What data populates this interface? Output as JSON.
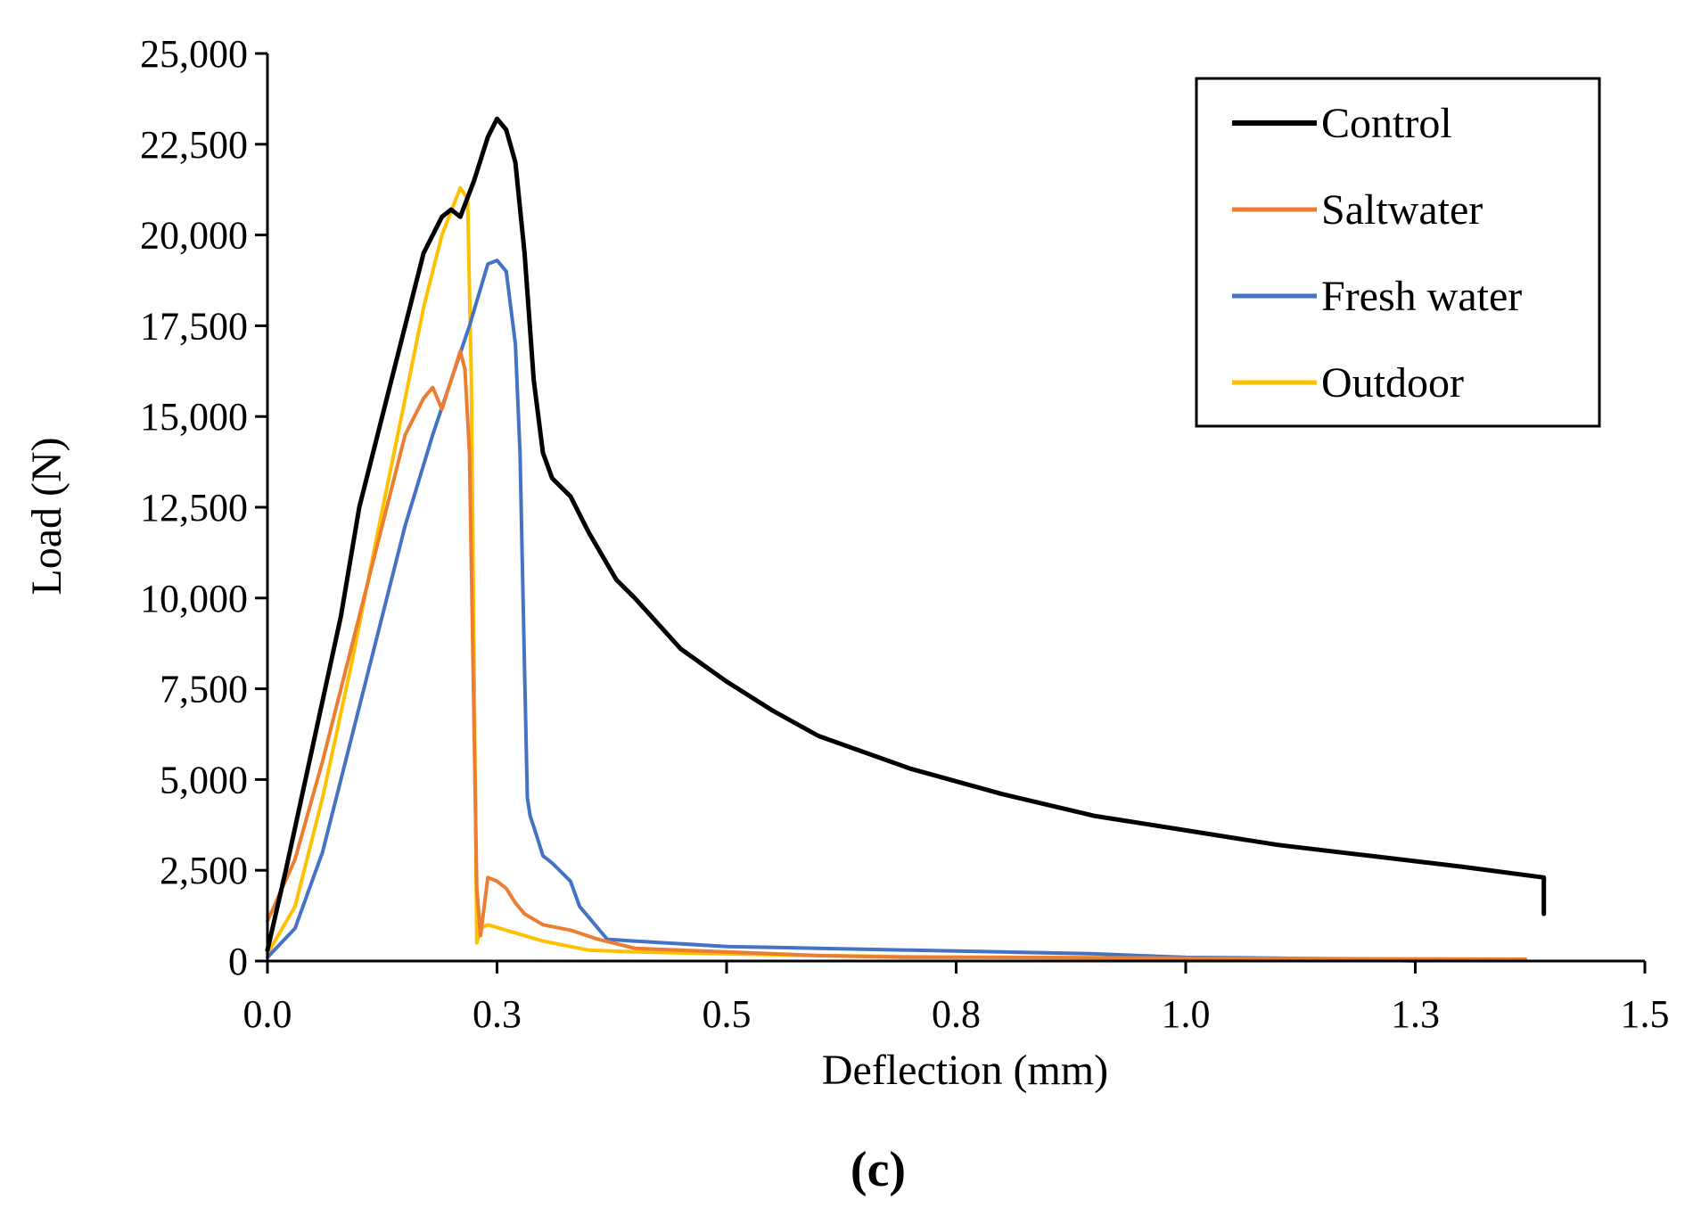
{
  "chart_data": {
    "type": "line",
    "title": "",
    "xlabel": "Deflection (mm)",
    "ylabel": "Load (N)",
    "panel_label": "(c)",
    "xlim": [
      0,
      1.5
    ],
    "ylim": [
      0,
      25000
    ],
    "x_ticks": [
      0,
      0.25,
      0.5,
      0.75,
      1.0,
      1.25,
      1.5
    ],
    "x_tick_labels": [
      "0.0",
      "0.3",
      "0.5",
      "0.8",
      "1.0",
      "1.3",
      "1.5"
    ],
    "y_ticks": [
      0,
      2500,
      5000,
      7500,
      10000,
      12500,
      15000,
      17500,
      20000,
      22500,
      25000
    ],
    "y_tick_labels": [
      "0",
      "2,500",
      "5,000",
      "7,500",
      "10,000",
      "12,500",
      "15,000",
      "17,500",
      "20,000",
      "22,500",
      "25,000"
    ],
    "grid": false,
    "legend_position": "top-right",
    "series": [
      {
        "name": "Control",
        "color": "#000000",
        "x": [
          0,
          0.02,
          0.05,
          0.08,
          0.1,
          0.13,
          0.15,
          0.17,
          0.19,
          0.2,
          0.21,
          0.225,
          0.24,
          0.25,
          0.26,
          0.27,
          0.28,
          0.29,
          0.3,
          0.31,
          0.33,
          0.35,
          0.38,
          0.4,
          0.45,
          0.5,
          0.55,
          0.6,
          0.7,
          0.8,
          0.9,
          1.0,
          1.1,
          1.2,
          1.3,
          1.39,
          1.39
        ],
        "y": [
          300,
          2500,
          6000,
          9500,
          12500,
          15500,
          17500,
          19500,
          20500,
          20700,
          20500,
          21500,
          22700,
          23200,
          22900,
          22000,
          19500,
          16000,
          14000,
          13300,
          12800,
          11800,
          10500,
          10000,
          8600,
          7700,
          6900,
          6200,
          5300,
          4600,
          4000,
          3600,
          3200,
          2900,
          2600,
          2300,
          1300
        ]
      },
      {
        "name": "Saltwater",
        "color": "#ED7D31",
        "x": [
          0,
          0.03,
          0.06,
          0.09,
          0.12,
          0.15,
          0.17,
          0.18,
          0.19,
          0.2,
          0.21,
          0.215,
          0.22,
          0.224,
          0.228,
          0.232,
          0.24,
          0.25,
          0.26,
          0.27,
          0.28,
          0.3,
          0.33,
          0.36,
          0.4,
          0.5,
          0.6,
          0.7,
          0.8,
          1.0,
          1.2,
          1.37
        ],
        "y": [
          1100,
          2800,
          5500,
          8500,
          11500,
          14500,
          15500,
          15800,
          15200,
          16000,
          16800,
          16300,
          14000,
          8000,
          2000,
          700,
          2300,
          2200,
          2000,
          1600,
          1300,
          1000,
          850,
          600,
          350,
          250,
          150,
          100,
          100,
          80,
          60,
          50
        ]
      },
      {
        "name": "Fresh water",
        "color": "#4472C4",
        "x": [
          0,
          0.03,
          0.06,
          0.09,
          0.12,
          0.15,
          0.18,
          0.2,
          0.22,
          0.24,
          0.25,
          0.26,
          0.27,
          0.275,
          0.28,
          0.283,
          0.286,
          0.29,
          0.3,
          0.31,
          0.33,
          0.34,
          0.35,
          0.37,
          0.4,
          0.5,
          0.6,
          0.7,
          0.8,
          0.9,
          1.0,
          1.1,
          1.2,
          1.25
        ],
        "y": [
          100,
          900,
          3000,
          6000,
          9000,
          12000,
          14500,
          16000,
          17500,
          19200,
          19300,
          19000,
          17000,
          14000,
          8000,
          4500,
          4000,
          3700,
          2900,
          2700,
          2200,
          1500,
          1200,
          600,
          550,
          400,
          350,
          300,
          250,
          200,
          100,
          80,
          40,
          0
        ]
      },
      {
        "name": "Outdoor",
        "color": "#FFC000",
        "x": [
          0,
          0.03,
          0.06,
          0.09,
          0.12,
          0.15,
          0.17,
          0.19,
          0.21,
          0.218,
          0.222,
          0.225,
          0.228,
          0.232,
          0.24,
          0.26,
          0.3,
          0.35,
          0.4,
          0.5,
          0.6,
          0.7,
          0.8,
          1.0,
          1.2,
          1.35
        ],
        "y": [
          200,
          1500,
          4500,
          8000,
          11800,
          15500,
          18000,
          20000,
          21300,
          21000,
          16000,
          8000,
          500,
          900,
          1000,
          850,
          550,
          300,
          250,
          200,
          150,
          120,
          100,
          80,
          60,
          50
        ]
      }
    ]
  }
}
